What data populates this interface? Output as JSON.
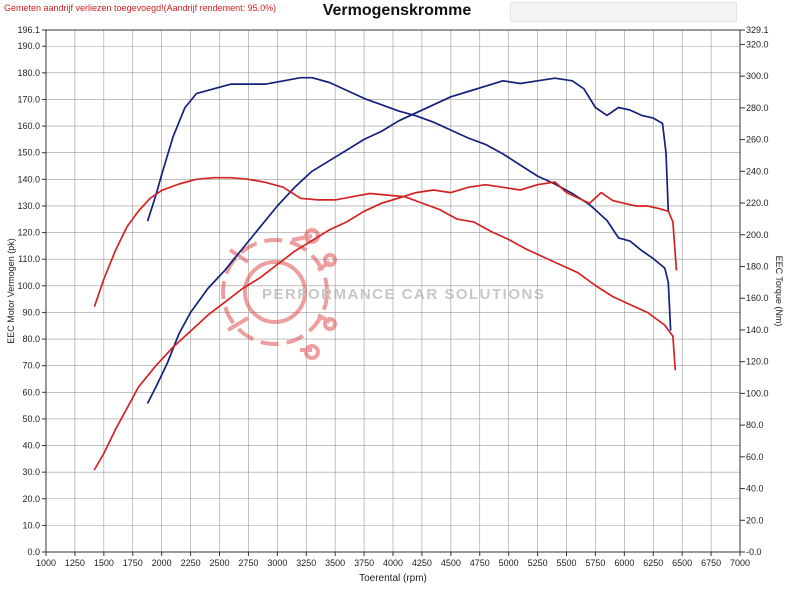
{
  "header": {
    "note": "Gemeten aandrijf verliezen toegevoegd!(Aandrijf rendement: 95.0%)",
    "title": "Vermogenskromme"
  },
  "watermark": {
    "text": "PERFORMANCE CAR SOLUTIONS",
    "logo": "gear-circuit-logo"
  },
  "colors": {
    "navy": "#13217d",
    "red": "#d42222",
    "grid": "#9a9a9a",
    "watermark": "#e05050"
  },
  "chart_data": {
    "type": "line",
    "title": "Vermogenskromme",
    "xlabel": "Toerental (rpm)",
    "ylabel_left": "EEC Motor Vermogen (pk)",
    "ylabel_right": "EEC Torque (Nm)",
    "xlim": [
      1000,
      7000
    ],
    "ylim_left": [
      0,
      196.1
    ],
    "ylim_right": [
      0,
      329.1
    ],
    "x_ticks": [
      "1000",
      "1250",
      "1500",
      "1750",
      "2000",
      "2250",
      "2500",
      "2750",
      "3000",
      "3250",
      "3500",
      "3750",
      "4000",
      "4250",
      "4500",
      "4750",
      "5000",
      "5250",
      "5500",
      "5750",
      "6000",
      "6250",
      "6500",
      "6750",
      "7000"
    ],
    "y_left_ticks": [
      "0.0",
      "10.0",
      "20.0",
      "30.0",
      "40.0",
      "50.0",
      "60.0",
      "70.0",
      "80.0",
      "90.0",
      "100.0",
      "110.0",
      "120.0",
      "130.0",
      "140.0",
      "150.0",
      "160.0",
      "170.0",
      "180.0",
      "190.0"
    ],
    "y_left_top": "196.1",
    "y_right_ticks": [
      "-0.0",
      "20.0",
      "40.0",
      "60.0",
      "80.0",
      "100.0",
      "120.0",
      "140.0",
      "160.0",
      "180.0",
      "200.0",
      "220.0",
      "240.0",
      "260.0",
      "280.0",
      "300.0",
      "320.0"
    ],
    "y_right_top": "329.1",
    "grid": true,
    "series": [
      {
        "color": "#13217d",
        "axis": "right",
        "points": [
          [
            1880,
            209
          ],
          [
            1950,
            225
          ],
          [
            2000,
            238
          ],
          [
            2100,
            262
          ],
          [
            2200,
            280
          ],
          [
            2300,
            289
          ],
          [
            2450,
            292
          ],
          [
            2600,
            295
          ],
          [
            2750,
            295
          ],
          [
            2900,
            295
          ],
          [
            3050,
            297
          ],
          [
            3200,
            299
          ],
          [
            3300,
            299
          ],
          [
            3450,
            296
          ],
          [
            3600,
            291
          ],
          [
            3750,
            286
          ],
          [
            3900,
            282
          ],
          [
            4050,
            278
          ],
          [
            4200,
            275
          ],
          [
            4350,
            271
          ],
          [
            4500,
            266
          ],
          [
            4650,
            261
          ],
          [
            4800,
            257
          ],
          [
            4950,
            251
          ],
          [
            5100,
            244
          ],
          [
            5250,
            237
          ],
          [
            5400,
            232
          ],
          [
            5550,
            226
          ],
          [
            5700,
            219
          ],
          [
            5850,
            209
          ],
          [
            5950,
            198
          ],
          [
            6050,
            196
          ],
          [
            6150,
            190
          ],
          [
            6250,
            185
          ],
          [
            6350,
            179
          ],
          [
            6380,
            170
          ],
          [
            6400,
            140
          ]
        ]
      },
      {
        "color": "#13217d",
        "axis": "left",
        "points": [
          [
            1880,
            56
          ],
          [
            1950,
            62
          ],
          [
            2050,
            71
          ],
          [
            2150,
            82
          ],
          [
            2250,
            90
          ],
          [
            2400,
            99
          ],
          [
            2550,
            106
          ],
          [
            2700,
            114
          ],
          [
            2850,
            122
          ],
          [
            3000,
            130
          ],
          [
            3150,
            137
          ],
          [
            3300,
            143
          ],
          [
            3450,
            147
          ],
          [
            3600,
            151
          ],
          [
            3750,
            155
          ],
          [
            3900,
            158
          ],
          [
            4050,
            162
          ],
          [
            4200,
            165
          ],
          [
            4350,
            168
          ],
          [
            4500,
            171
          ],
          [
            4650,
            173
          ],
          [
            4800,
            175
          ],
          [
            4950,
            177
          ],
          [
            5100,
            176
          ],
          [
            5250,
            177
          ],
          [
            5400,
            178
          ],
          [
            5550,
            177
          ],
          [
            5650,
            174
          ],
          [
            5750,
            167
          ],
          [
            5850,
            164
          ],
          [
            5950,
            167
          ],
          [
            6050,
            166
          ],
          [
            6150,
            164
          ],
          [
            6250,
            163
          ],
          [
            6330,
            161
          ],
          [
            6360,
            150
          ],
          [
            6380,
            128
          ]
        ]
      },
      {
        "color": "#d42222",
        "axis": "right",
        "points": [
          [
            1420,
            155
          ],
          [
            1500,
            172
          ],
          [
            1600,
            190
          ],
          [
            1700,
            205
          ],
          [
            1800,
            215
          ],
          [
            1900,
            223
          ],
          [
            2000,
            228
          ],
          [
            2150,
            232
          ],
          [
            2300,
            235
          ],
          [
            2450,
            236
          ],
          [
            2600,
            236
          ],
          [
            2750,
            235
          ],
          [
            2900,
            233
          ],
          [
            3050,
            230
          ],
          [
            3200,
            223
          ],
          [
            3350,
            222
          ],
          [
            3500,
            222
          ],
          [
            3650,
            224
          ],
          [
            3800,
            226
          ],
          [
            3950,
            225
          ],
          [
            4100,
            224
          ],
          [
            4250,
            220
          ],
          [
            4400,
            216
          ],
          [
            4550,
            210
          ],
          [
            4700,
            208
          ],
          [
            4850,
            202
          ],
          [
            5000,
            197
          ],
          [
            5150,
            191
          ],
          [
            5300,
            186
          ],
          [
            5450,
            181
          ],
          [
            5600,
            176
          ],
          [
            5750,
            168
          ],
          [
            5900,
            161
          ],
          [
            6050,
            156
          ],
          [
            6200,
            151
          ],
          [
            6350,
            143
          ],
          [
            6420,
            136
          ],
          [
            6440,
            115
          ]
        ]
      },
      {
        "color": "#d42222",
        "axis": "left",
        "points": [
          [
            1420,
            31
          ],
          [
            1500,
            37
          ],
          [
            1600,
            46
          ],
          [
            1700,
            54
          ],
          [
            1800,
            62
          ],
          [
            1950,
            70
          ],
          [
            2100,
            77
          ],
          [
            2250,
            83
          ],
          [
            2400,
            89
          ],
          [
            2550,
            94
          ],
          [
            2700,
            99
          ],
          [
            2850,
            103
          ],
          [
            3000,
            108
          ],
          [
            3150,
            113
          ],
          [
            3300,
            117
          ],
          [
            3450,
            121
          ],
          [
            3600,
            124
          ],
          [
            3750,
            128
          ],
          [
            3900,
            131
          ],
          [
            4050,
            133
          ],
          [
            4200,
            135
          ],
          [
            4350,
            136
          ],
          [
            4500,
            135
          ],
          [
            4650,
            137
          ],
          [
            4800,
            138
          ],
          [
            4950,
            137
          ],
          [
            5100,
            136
          ],
          [
            5250,
            138
          ],
          [
            5400,
            139
          ],
          [
            5500,
            135
          ],
          [
            5600,
            133
          ],
          [
            5700,
            131
          ],
          [
            5800,
            135
          ],
          [
            5900,
            132
          ],
          [
            6000,
            131
          ],
          [
            6100,
            130
          ],
          [
            6200,
            130
          ],
          [
            6300,
            129
          ],
          [
            6380,
            128
          ],
          [
            6420,
            124
          ],
          [
            6450,
            106
          ]
        ]
      }
    ]
  }
}
